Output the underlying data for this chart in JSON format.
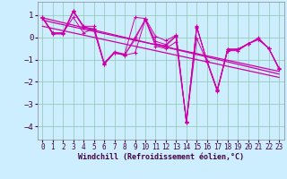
{
  "xlabel": "Windchill (Refroidissement éolien,°C)",
  "bg_color": "#cceeff",
  "grid_color": "#99ccbb",
  "line_color": "#cc00aa",
  "xlim": [
    -0.5,
    23.5
  ],
  "ylim": [
    -4.6,
    1.6
  ],
  "yticks": [
    -4,
    -3,
    -2,
    -1,
    0,
    1
  ],
  "xticks": [
    0,
    1,
    2,
    3,
    4,
    5,
    6,
    7,
    8,
    9,
    10,
    11,
    12,
    13,
    14,
    15,
    16,
    17,
    18,
    19,
    20,
    21,
    22,
    23
  ],
  "series": [
    [
      0.9,
      0.2,
      0.2,
      0.9,
      0.2,
      0.4,
      -1.2,
      -0.7,
      -0.8,
      -0.7,
      0.8,
      -0.4,
      -0.5,
      -0.2,
      -3.8,
      0.5,
      -1.1,
      -2.4,
      -0.6,
      -0.6,
      -0.3,
      -0.1,
      -0.5,
      -1.4
    ],
    [
      0.9,
      0.2,
      0.2,
      1.2,
      0.5,
      0.5,
      -1.15,
      -0.65,
      -0.75,
      0.9,
      0.85,
      0.05,
      -0.15,
      0.1,
      -3.85,
      0.45,
      -1.05,
      -2.35,
      -0.6,
      -0.55,
      -0.28,
      -0.08,
      -0.48,
      -1.38
    ],
    [
      0.88,
      0.18,
      0.18,
      1.18,
      0.48,
      0.38,
      -1.18,
      -0.68,
      -0.78,
      -0.1,
      0.82,
      -0.18,
      -0.32,
      0.08,
      -3.82,
      0.48,
      -1.08,
      -2.38,
      -0.52,
      -0.52,
      -0.3,
      -0.02,
      -0.5,
      -1.4
    ],
    [
      0.88,
      0.15,
      0.15,
      1.15,
      0.45,
      0.35,
      -1.2,
      -0.7,
      -0.8,
      0.0,
      0.8,
      -0.28,
      -0.38,
      0.05,
      -3.8,
      -0.05,
      -1.1,
      -2.42,
      -0.55,
      -0.55,
      -0.28,
      -0.08,
      -0.48,
      -1.42
    ]
  ],
  "trend_series": [
    [
      0.88,
      0.77,
      0.66,
      0.55,
      0.44,
      0.33,
      0.22,
      0.11,
      0.0,
      -0.11,
      -0.22,
      -0.33,
      -0.44,
      -0.55,
      -0.66,
      -0.77,
      -0.88,
      -0.99,
      -1.1,
      -1.21,
      -1.32,
      -1.43,
      -1.54,
      -1.65
    ],
    [
      0.78,
      0.67,
      0.57,
      0.47,
      0.37,
      0.27,
      0.17,
      0.07,
      -0.03,
      -0.13,
      -0.23,
      -0.33,
      -0.43,
      -0.53,
      -0.63,
      -0.73,
      -0.83,
      -0.93,
      -1.03,
      -1.13,
      -1.23,
      -1.33,
      -1.43,
      -1.53
    ],
    [
      0.5,
      0.4,
      0.3,
      0.2,
      0.1,
      0.0,
      -0.1,
      -0.2,
      -0.3,
      -0.4,
      -0.5,
      -0.6,
      -0.7,
      -0.8,
      -0.9,
      -1.0,
      -1.1,
      -1.2,
      -1.3,
      -1.4,
      -1.5,
      -1.6,
      -1.7,
      -1.8
    ]
  ]
}
